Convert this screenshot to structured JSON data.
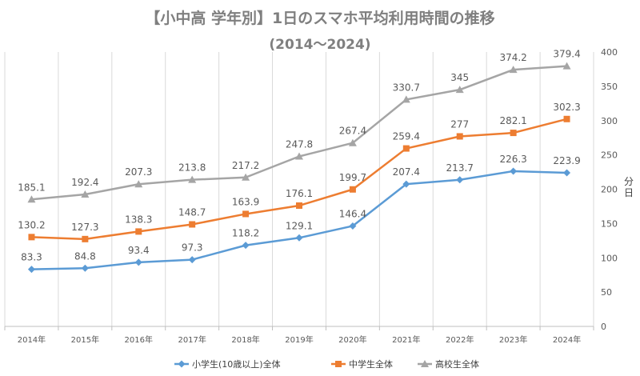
{
  "chart_data": {
    "type": "line",
    "title": "【小中高 学年別】1日のスマホ平均利用時間の推移",
    "subtitle": "(2014〜2024)",
    "categories": [
      "2014年",
      "2015年",
      "2016年",
      "2017年",
      "2018年",
      "2019年",
      "2020年",
      "2021年",
      "2022年",
      "2023年",
      "2024年"
    ],
    "ylabel": "分\n日",
    "ylabel_lines": [
      "分",
      "日"
    ],
    "y_axis_side": "right",
    "ylim": [
      0,
      400
    ],
    "yticks": [
      0,
      50,
      100,
      150,
      200,
      250,
      300,
      350,
      400
    ],
    "grid": "vertical",
    "legend": "bottom",
    "series": [
      {
        "name": "小学生(10歳以上)全体",
        "color": "#5b9bd5",
        "marker": "diamond",
        "values": [
          83.3,
          84.8,
          93.4,
          97.3,
          118.2,
          129.1,
          146.4,
          207.4,
          213.7,
          226.3,
          223.9
        ],
        "labels": [
          "83.3",
          "84.8",
          "93.4",
          "97.3",
          "118.2",
          "129.1",
          "146.4",
          "207.4",
          "213.7",
          "226.3",
          "223.9"
        ]
      },
      {
        "name": "中学生全体",
        "color": "#ed7d31",
        "marker": "square",
        "values": [
          130.2,
          127.3,
          138.3,
          148.7,
          163.9,
          176.1,
          199.7,
          259.4,
          277,
          282.1,
          302.3
        ],
        "labels": [
          "130.2",
          "127.3",
          "138.3",
          "148.7",
          "163.9",
          "176.1",
          "199.7",
          "259.4",
          "277",
          "282.1",
          "302.3"
        ]
      },
      {
        "name": "高校生全体",
        "color": "#a5a5a5",
        "marker": "triangle",
        "values": [
          185.1,
          192.4,
          207.3,
          213.8,
          217.2,
          247.8,
          267.4,
          330.7,
          345,
          374.2,
          379.4
        ],
        "labels": [
          "185.1",
          "192.4",
          "207.3",
          "213.8",
          "217.2",
          "247.8",
          "267.4",
          "330.7",
          "345",
          "374.2",
          "379.4"
        ]
      }
    ]
  }
}
